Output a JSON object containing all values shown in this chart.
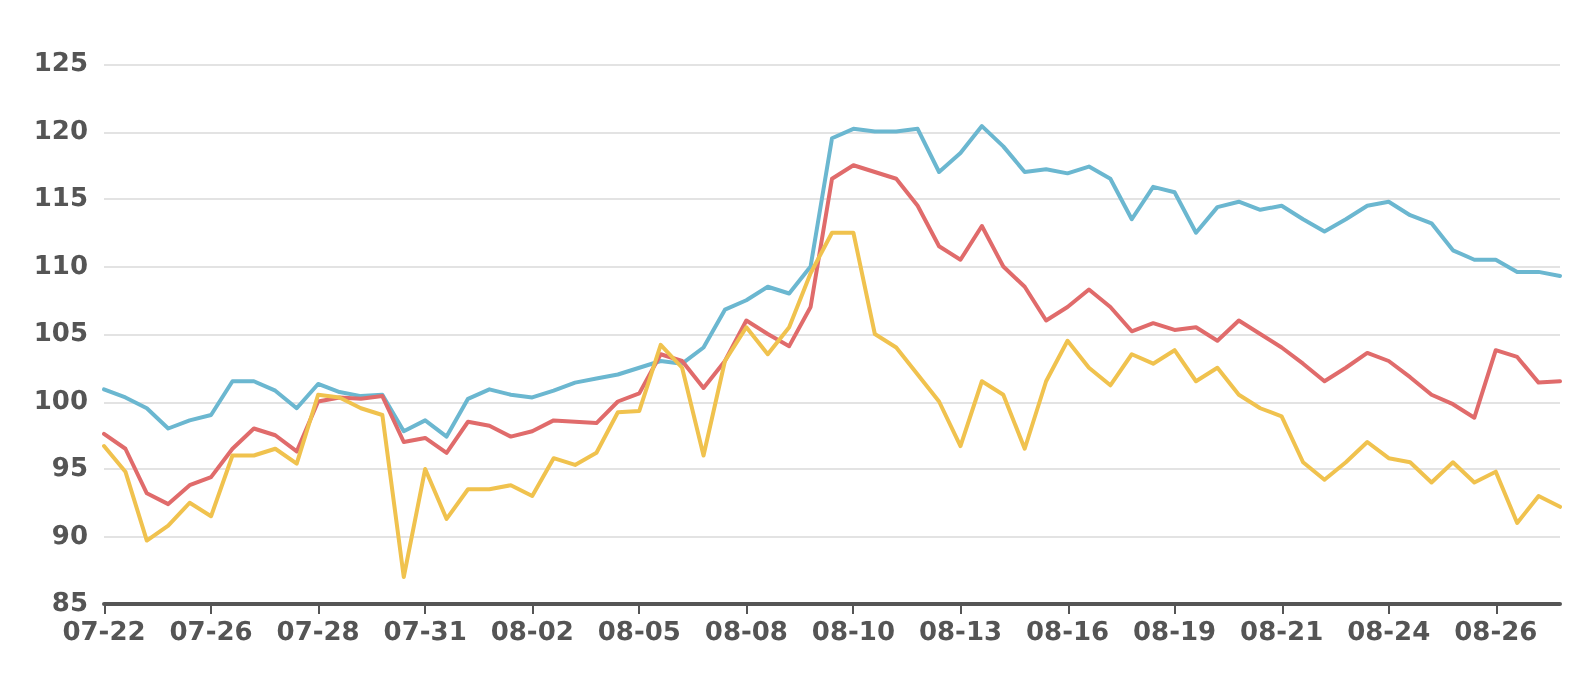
{
  "chart_data": {
    "type": "line",
    "categories": [
      "07-22",
      null,
      null,
      null,
      null,
      "07-26",
      null,
      null,
      null,
      null,
      "07-28",
      null,
      null,
      null,
      null,
      "07-31",
      null,
      null,
      null,
      null,
      "08-02",
      null,
      null,
      null,
      null,
      "08-05",
      null,
      null,
      null,
      null,
      "08-08",
      null,
      null,
      null,
      null,
      "08-10",
      null,
      null,
      null,
      null,
      "08-13",
      null,
      null,
      null,
      null,
      "08-16",
      null,
      null,
      null,
      null,
      "08-19",
      null,
      null,
      null,
      null,
      "08-21",
      null,
      null,
      null,
      null,
      "08-24",
      null,
      null,
      null,
      null,
      "08-26",
      null,
      null,
      null
    ],
    "series": [
      {
        "color": "#6bb7d0",
        "values": [
          100.9,
          100.3,
          99.5,
          98,
          98.6,
          99,
          101.5,
          101.5,
          100.8,
          99.5,
          101.3,
          100.7,
          100.4,
          100.5,
          97.8,
          98.6,
          97.4,
          100.2,
          100.9,
          100.5,
          100.3,
          100.8,
          101.4,
          101.7,
          102,
          102.5,
          103,
          102.8,
          104,
          106.8,
          107.5,
          108.5,
          108,
          110,
          119.5,
          120.2,
          120,
          120,
          120.2,
          117,
          118.4,
          120.4,
          118.9,
          117,
          117.2,
          116.9,
          117.4,
          116.5,
          113.5,
          115.9,
          115.5,
          112.5,
          114.4,
          114.8,
          114.2,
          114.5,
          113.5,
          112.6,
          113.5,
          114.5,
          114.8,
          113.8,
          113.2,
          111.2,
          110.5,
          110.5,
          109.6,
          109.6,
          109.3
        ]
      },
      {
        "color": "#e06b6b",
        "values": [
          97.6,
          96.5,
          93.2,
          92.4,
          93.8,
          94.4,
          96.5,
          98,
          97.5,
          96.3,
          100,
          100.3,
          100.2,
          100.4,
          97,
          97.3,
          96.2,
          98.5,
          98.2,
          97.4,
          97.8,
          98.6,
          98.5,
          98.4,
          100,
          100.6,
          103.5,
          103,
          101,
          103,
          106,
          105,
          104.1,
          107,
          116.5,
          117.5,
          117,
          116.5,
          114.5,
          111.5,
          110.5,
          113,
          110,
          108.5,
          106,
          107,
          108.3,
          107,
          105.2,
          105.8,
          105.3,
          105.5,
          104.5,
          106,
          105,
          104,
          102.8,
          101.5,
          102.5,
          103.6,
          103,
          101.8,
          100.5,
          99.8,
          98.8,
          103.8,
          103.3,
          101.4,
          101.5
        ]
      },
      {
        "color": "#f0c24e",
        "values": [
          96.7,
          94.8,
          89.7,
          90.8,
          92.5,
          91.5,
          96,
          96,
          96.5,
          95.4,
          100.5,
          100.3,
          99.5,
          99,
          87,
          95,
          91.3,
          93.5,
          93.5,
          93.8,
          93,
          95.8,
          95.3,
          96.2,
          99.2,
          99.3,
          104.2,
          102.5,
          96,
          103,
          105.5,
          103.5,
          105.5,
          109.5,
          112.5,
          112.5,
          105,
          104,
          102,
          100,
          96.7,
          101.5,
          100.5,
          96.5,
          101.5,
          104.5,
          102.5,
          101.2,
          103.5,
          102.8,
          103.8,
          101.5,
          102.5,
          100.5,
          99.5,
          98.9,
          95.5,
          94.2,
          95.5,
          97,
          95.8,
          95.5,
          94,
          95.5,
          94,
          94.8,
          91,
          93,
          92.2
        ]
      }
    ],
    "ylim": [
      85,
      125
    ],
    "yticks": [
      85,
      90,
      95,
      100,
      105,
      110,
      115,
      120,
      125
    ],
    "grid": "y",
    "marker": "none",
    "line_style": "solid"
  }
}
